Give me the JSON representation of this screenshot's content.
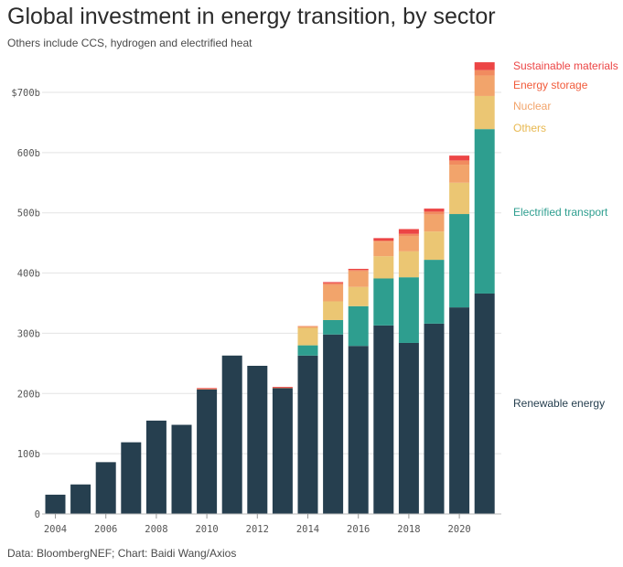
{
  "header": {
    "title": "Global investment in energy transition, by sector",
    "subtitle": "Others include CCS, hydrogen and electrified heat"
  },
  "footer": {
    "source": "Data: BloombergNEF; Chart: Baidi Wang/Axios"
  },
  "chart_data": {
    "type": "bar",
    "stacked": true,
    "title": "Global investment in energy transition, by sector",
    "subtitle": "Others include CCS, hydrogen and electrified heat",
    "xlabel": "",
    "ylabel": "",
    "ylim": [
      0,
      750
    ],
    "y_ticks": [
      0,
      100,
      200,
      300,
      400,
      500,
      600,
      700
    ],
    "y_tick_labels": [
      "0",
      "100b",
      "200b",
      "300b",
      "400b",
      "500b",
      "600b",
      "$700b"
    ],
    "x_tick_labels": [
      "2004",
      "2006",
      "2008",
      "2010",
      "2012",
      "2014",
      "2016",
      "2018",
      "2020"
    ],
    "grid": "horizontal",
    "legend": "right",
    "categories": [
      "2004",
      "2005",
      "2006",
      "2007",
      "2008",
      "2009",
      "2010",
      "2011",
      "2012",
      "2013",
      "2014",
      "2015",
      "2016",
      "2017",
      "2018",
      "2019",
      "2020",
      "2021"
    ],
    "series": [
      {
        "name": "Renewable energy",
        "color": "#263f4f",
        "values": [
          32,
          49,
          86,
          119,
          155,
          148,
          207,
          263,
          246,
          209,
          263,
          298,
          279,
          313,
          284,
          316,
          343,
          366
        ]
      },
      {
        "name": "Electrified transport",
        "color": "#2e9e8f",
        "values": [
          0,
          0,
          0,
          0,
          0,
          0,
          0,
          0,
          0,
          0,
          17,
          24,
          66,
          78,
          109,
          106,
          155,
          273
        ]
      },
      {
        "name": "Others",
        "color": "#ebc673",
        "values": [
          0,
          0,
          0,
          0,
          0,
          0,
          0,
          0,
          0,
          0,
          29,
          31,
          32,
          37,
          43,
          47,
          52,
          55
        ]
      },
      {
        "name": "Nuclear",
        "color": "#f2a46b",
        "values": [
          0,
          0,
          0,
          0,
          0,
          0,
          0,
          0,
          0,
          0,
          2,
          27,
          26,
          24,
          25,
          28,
          30,
          34
        ]
      },
      {
        "name": "Energy storage",
        "color": "#f18b5f",
        "values": [
          0,
          0,
          0,
          0,
          0,
          0,
          1,
          0,
          0,
          1,
          1,
          3,
          2,
          2,
          4,
          5,
          7,
          9
        ]
      },
      {
        "name": "Sustainable materials",
        "color": "#ec4545",
        "values": [
          0,
          0,
          0,
          0,
          0,
          0,
          1,
          0,
          0,
          1,
          0,
          2,
          2,
          4,
          8,
          5,
          8,
          13
        ]
      }
    ],
    "legend_labels": [
      {
        "series": "Sustainable materials",
        "color": "#ec4545"
      },
      {
        "series": "Energy storage",
        "color": "#f15a3a"
      },
      {
        "series": "Nuclear",
        "color": "#f2a46b"
      },
      {
        "series": "Others",
        "color": "#e8b850"
      },
      {
        "series": "Electrified transport",
        "color": "#2e9e8f"
      },
      {
        "series": "Renewable energy",
        "color": "#263f4f"
      }
    ]
  }
}
